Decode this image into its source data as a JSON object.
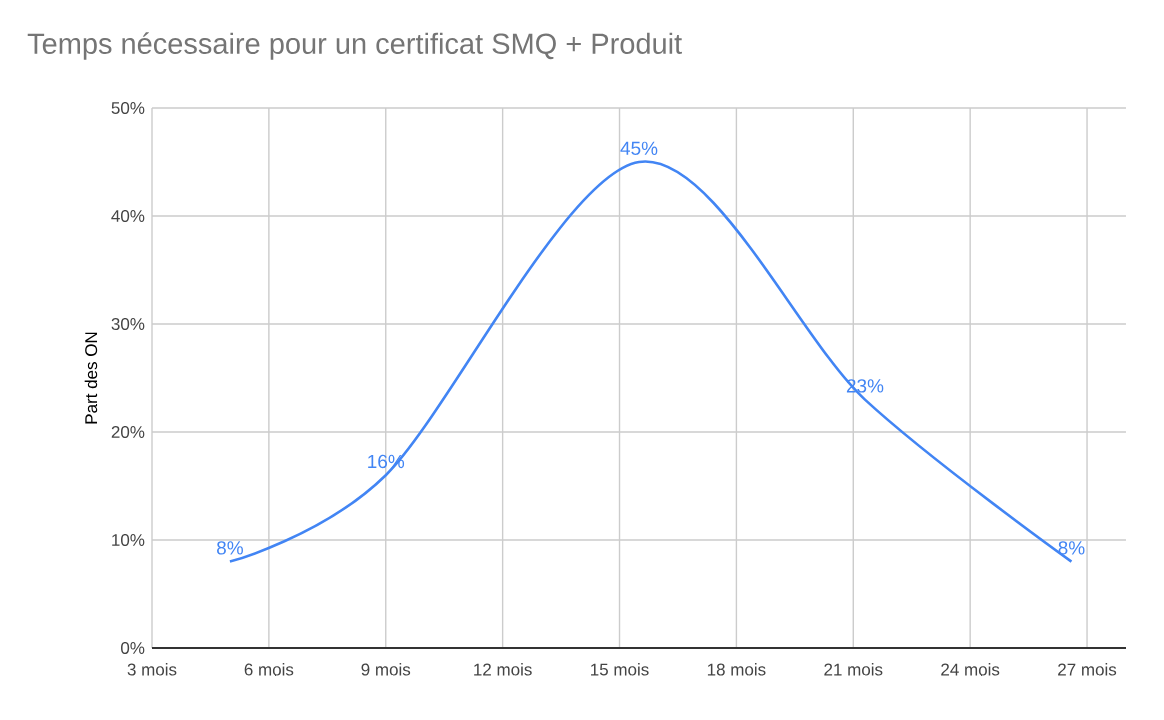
{
  "chart_data": {
    "type": "line",
    "title": "Temps nécessaire pour un certificat SMQ + Produit",
    "ylabel": "Part des ON",
    "x": [
      5,
      9,
      15.5,
      21.3,
      26.6
    ],
    "series": [
      {
        "color": "#4285f4",
        "values": [
          8,
          16,
          45,
          23,
          8
        ],
        "value_labels": [
          "8%",
          "16%",
          "45%",
          "23%",
          "8%"
        ]
      }
    ],
    "xlim": [
      3,
      28
    ],
    "xticks": [
      {
        "value": 3,
        "label": "3 mois"
      },
      {
        "value": 6,
        "label": "6 mois"
      },
      {
        "value": 9,
        "label": "9 mois"
      },
      {
        "value": 12,
        "label": "12 mois"
      },
      {
        "value": 15,
        "label": "15 mois"
      },
      {
        "value": 18,
        "label": "18 mois"
      },
      {
        "value": 21,
        "label": "21 mois"
      },
      {
        "value": 24,
        "label": "24 mois"
      },
      {
        "value": 27,
        "label": "27 mois"
      }
    ],
    "ylim": [
      0,
      50
    ],
    "yticks": [
      {
        "value": 0,
        "label": "0%"
      },
      {
        "value": 10,
        "label": "10%"
      },
      {
        "value": 20,
        "label": "20%"
      },
      {
        "value": 30,
        "label": "30%"
      },
      {
        "value": 40,
        "label": "40%"
      },
      {
        "value": 50,
        "label": "50%"
      }
    ],
    "grid": true,
    "line_style": "solid"
  }
}
